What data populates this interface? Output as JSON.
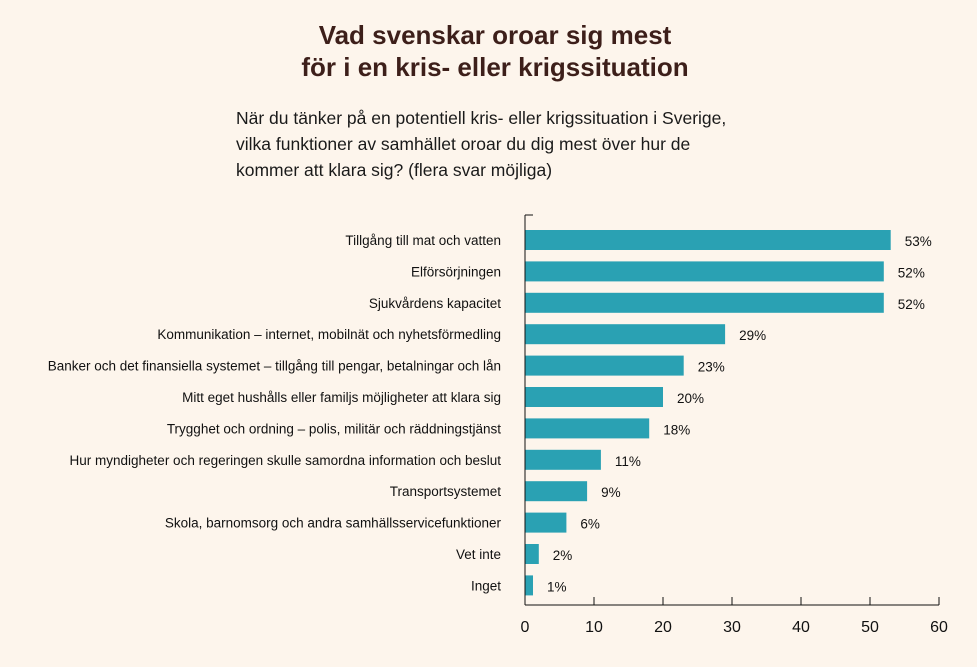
{
  "title_line1": "Vad svenskar oroar sig mest",
  "title_line2": "för i en kris- eller krigssituation",
  "subtitle_lines": [
    "När du tänker på en potentiell kris- eller krigssituation i Sverige,",
    "vilka funktioner av samhället oroar du dig mest över hur de",
    "kommer att klara sig? (flera svar möjliga)"
  ],
  "colors": {
    "background": "#fdf5ec",
    "bar": "#2aa1b3",
    "title": "#3d1f1a"
  },
  "chart_data": {
    "type": "bar",
    "orientation": "horizontal",
    "title": "Vad svenskar oroar sig mest för i en kris- eller krigssituation",
    "subtitle": "När du tänker på en potentiell kris- eller krigssituation i Sverige, vilka funktioner av samhället oroar du dig mest över hur de kommer att klara sig? (flera svar möjliga)",
    "categories": [
      "Tillgång till mat och vatten",
      "Elförsörjningen",
      "Sjukvårdens kapacitet",
      "Kommunikation – internet, mobilnät och nyhetsförmedling",
      "Banker och det finansiella systemet – tillgång till pengar, betalningar och lån",
      "Mitt eget hushålls eller familjs möjligheter att klara sig",
      "Trygghet och ordning – polis, militär och räddningstjänst",
      "Hur myndigheter och regeringen skulle samordna information och beslut",
      "Transportsystemet",
      "Skola, barnomsorg och andra samhällsservicefunktioner",
      "Vet inte",
      "Inget"
    ],
    "values": [
      53,
      52,
      52,
      29,
      23,
      20,
      18,
      11,
      9,
      6,
      2,
      1
    ],
    "value_labels": [
      "53%",
      "52%",
      "52%",
      "29%",
      "23%",
      "20%",
      "18%",
      "11%",
      "9%",
      "6%",
      "2%",
      "1%"
    ],
    "xlabel": "",
    "ylabel": "",
    "xlim": [
      0,
      60
    ],
    "xticks": [
      0,
      10,
      20,
      30,
      40,
      50,
      60
    ],
    "xtick_labels": [
      "0",
      "10",
      "20",
      "30",
      "40",
      "50",
      "60"
    ],
    "grid": false,
    "legend": "none"
  }
}
